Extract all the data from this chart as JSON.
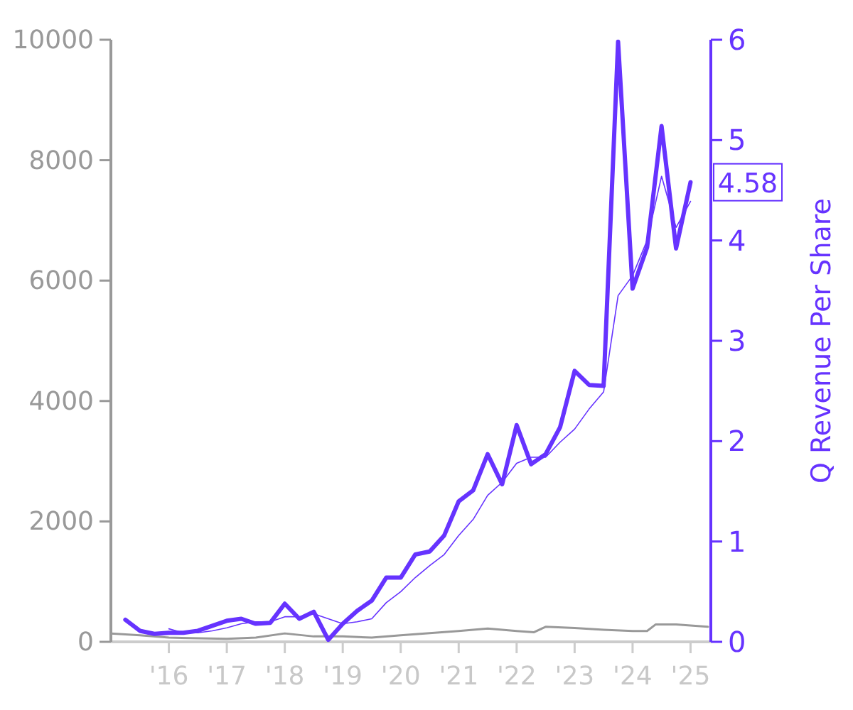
{
  "chart_data": {
    "type": "line",
    "y2label": "Q Revenue Per Share",
    "xlim": [
      2015,
      2025.35
    ],
    "xticks": [
      {
        "value": 2016,
        "label": "'16"
      },
      {
        "value": 2017,
        "label": "'17"
      },
      {
        "value": 2018,
        "label": "'18"
      },
      {
        "value": 2019,
        "label": "'19"
      },
      {
        "value": 2020,
        "label": "'20"
      },
      {
        "value": 2021,
        "label": "'21"
      },
      {
        "value": 2022,
        "label": "'22"
      },
      {
        "value": 2023,
        "label": "'23"
      },
      {
        "value": 2024,
        "label": "'24"
      },
      {
        "value": 2025,
        "label": "'25"
      }
    ],
    "ylim": [
      0,
      10000
    ],
    "yticks": [
      0,
      2000,
      4000,
      6000,
      8000,
      10000
    ],
    "y2lim": [
      0,
      6
    ],
    "y2ticks": [
      0,
      1,
      2,
      3,
      4,
      5,
      6
    ],
    "series": [
      {
        "color": "#999999",
        "axis": "y",
        "x": [
          2015,
          2015.5,
          2016,
          2017,
          2017.5,
          2018,
          2018.5,
          2019,
          2019.5,
          2020,
          2021,
          2021.5,
          2022,
          2022.3,
          2022.5,
          2023,
          2023.5,
          2024,
          2024.25,
          2024.4,
          2024.75,
          2025,
          2025.3
        ],
        "values": [
          140,
          110,
          70,
          50,
          70,
          140,
          90,
          90,
          70,
          110,
          180,
          220,
          180,
          160,
          250,
          230,
          200,
          180,
          180,
          290,
          290,
          270,
          250
        ]
      },
      {
        "color": "#6633ff",
        "axis": "y2",
        "line_style": "solid",
        "x": [
          2016,
          2016.25,
          2016.5,
          2016.75,
          2017,
          2017.25,
          2017.5,
          2017.75,
          2018,
          2018.25,
          2018.5,
          2018.75,
          2019,
          2019.25,
          2019.5,
          2019.75,
          2020,
          2020.25,
          2020.5,
          2020.75,
          2021,
          2021.25,
          2021.5,
          2021.75,
          2022,
          2022.25,
          2022.5,
          2022.75,
          2023,
          2023.25,
          2023.5,
          2023.75,
          2024,
          2024.25,
          2024.5,
          2024.75,
          2025
        ],
        "values": [
          0.13,
          0.09,
          0.09,
          0.11,
          0.14,
          0.18,
          0.2,
          0.2,
          0.25,
          0.25,
          0.28,
          0.23,
          0.18,
          0.2,
          0.23,
          0.39,
          0.5,
          0.64,
          0.76,
          0.87,
          1.06,
          1.22,
          1.46,
          1.59,
          1.78,
          1.84,
          1.84,
          1.99,
          2.12,
          2.32,
          2.49,
          3.45,
          3.65,
          4.0,
          4.64,
          4.13,
          4.39
        ]
      },
      {
        "color": "#6633ff",
        "axis": "y2",
        "x": [
          2015.25,
          2015.5,
          2015.75,
          2016,
          2016.25,
          2016.5,
          2016.75,
          2017,
          2017.25,
          2017.5,
          2017.75,
          2018,
          2018.25,
          2018.5,
          2018.75,
          2019,
          2019.25,
          2019.5,
          2019.75,
          2020,
          2020.25,
          2020.5,
          2020.75,
          2021,
          2021.25,
          2021.5,
          2021.75,
          2022,
          2022.25,
          2022.5,
          2022.75,
          2023,
          2023.25,
          2023.5,
          2023.75,
          2024,
          2024.25,
          2024.5,
          2024.75,
          2025
        ],
        "values": [
          0.22,
          0.11,
          0.08,
          0.09,
          0.09,
          0.11,
          0.16,
          0.21,
          0.23,
          0.18,
          0.19,
          0.38,
          0.23,
          0.3,
          0.02,
          0.18,
          0.31,
          0.41,
          0.64,
          0.64,
          0.87,
          0.9,
          1.06,
          1.4,
          1.51,
          1.87,
          1.57,
          2.16,
          1.77,
          1.87,
          2.14,
          2.7,
          2.56,
          2.55,
          5.98,
          3.52,
          3.93,
          5.14,
          3.92,
          4.58
        ]
      }
    ],
    "annotations": [
      "4.58"
    ],
    "grid": false
  }
}
